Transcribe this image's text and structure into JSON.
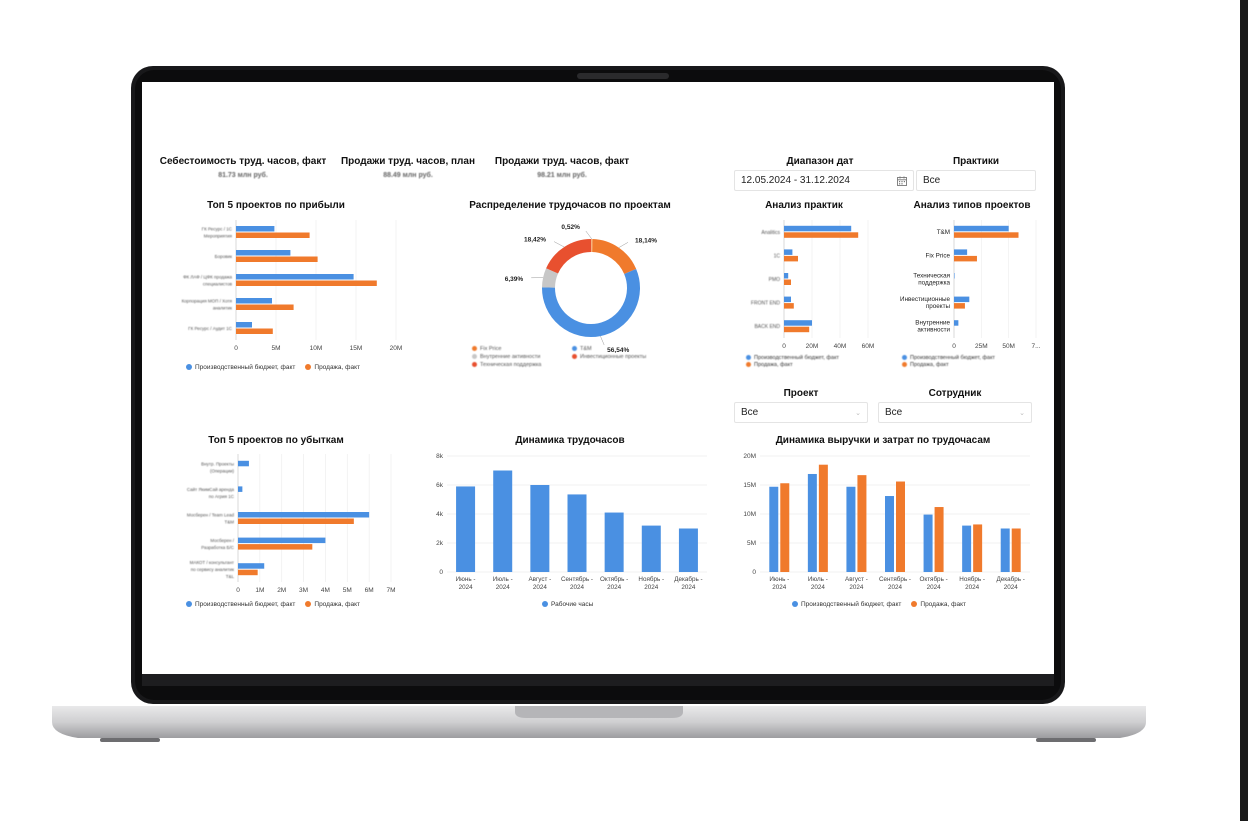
{
  "colors": {
    "blue": "#4A90E2",
    "orange": "#F07A2C",
    "red": "#E8502F",
    "gray": "#C7C7C7",
    "pale_orange": "#F6B37F"
  },
  "kpis": [
    {
      "title": "Себестоимость труд. часов, факт",
      "value": "81.73 млн руб."
    },
    {
      "title": "Продажи труд. часов, план",
      "value": "88.49 млн руб."
    },
    {
      "title": "Продажи труд. часов, факт",
      "value": "98.21 млн руб."
    }
  ],
  "filters": {
    "date_range": {
      "label": "Диапазон дат",
      "value": "12.05.2024 - 31.12.2024",
      "icon": "calendar-icon"
    },
    "practices": {
      "label": "Практики",
      "value": "Все"
    },
    "project": {
      "label": "Проект",
      "value": "Все"
    },
    "employee": {
      "label": "Сотрудник",
      "value": "Все"
    }
  },
  "legend": {
    "budget": "Производственный бюджет, факт",
    "sales": "Продажа, факт",
    "hours": "Рабочие часы"
  },
  "chart_data": [
    {
      "id": "top5_profit",
      "type": "bar",
      "orientation": "horizontal",
      "title": "Топ 5 проектов по прибыли",
      "categories": [
        "ГК Ресурс / 1С Мероприятия",
        "Боровик",
        "ФК ЛАФ / ЦФК продажа специалистов",
        "Корпорация МОП / Хотя аналитик",
        "ГК Ресурс / Аудит 1С"
      ],
      "series": [
        {
          "name": "Производственный бюджет, факт",
          "values": [
            4.8,
            6.8,
            14.7,
            4.5,
            2.0
          ]
        },
        {
          "name": "Продажа, факт",
          "values": [
            9.2,
            10.2,
            17.6,
            7.2,
            4.6
          ]
        }
      ],
      "xticks": [
        "0",
        "5M",
        "10M",
        "15M",
        "20M"
      ],
      "xlim": [
        0,
        20
      ]
    },
    {
      "id": "hours_distribution",
      "type": "pie",
      "title": "Распределение трудочасов по проектам",
      "labels": [
        "T&M",
        "Fix Price",
        "Техническая поддержка",
        "Внутренние активности",
        "Инвестиционные проекты"
      ],
      "values": [
        56.54,
        18.14,
        18.42,
        6.39,
        0.52
      ],
      "value_labels": [
        "56,54%",
        "18,14%",
        "18,42%",
        "6,39%",
        "0,52%"
      ]
    },
    {
      "id": "practice_analysis",
      "type": "bar",
      "orientation": "horizontal",
      "title": "Анализ практик",
      "categories": [
        "Analitics",
        "1С",
        "PMO",
        "FRONT END",
        "BACK END"
      ],
      "series": [
        {
          "name": "Производственный бюджет, факт",
          "values": [
            48,
            6,
            3,
            5,
            20
          ]
        },
        {
          "name": "Продажа, факт",
          "values": [
            53,
            10,
            5,
            7,
            18
          ]
        }
      ],
      "xticks": [
        "0",
        "20M",
        "40M",
        "60M"
      ],
      "xlim": [
        0,
        60
      ]
    },
    {
      "id": "project_type_analysis",
      "type": "bar",
      "orientation": "horizontal",
      "title": "Анализ типов проектов",
      "categories": [
        "T&M",
        "Fix Price",
        "Техническая поддержка",
        "Инвестиционные проекты",
        "Внутренние активности"
      ],
      "series": [
        {
          "name": "Производственный бюджет, факт",
          "values": [
            50,
            12,
            0.5,
            14,
            4
          ]
        },
        {
          "name": "Продажа, факт",
          "values": [
            59,
            21,
            0,
            10,
            0
          ]
        }
      ],
      "xticks": [
        "0",
        "25M",
        "50M",
        "7..."
      ],
      "xlim": [
        0,
        75
      ]
    },
    {
      "id": "top5_loss",
      "type": "bar",
      "orientation": "horizontal",
      "title": "Топ 5 проектов по убыткам",
      "categories": [
        "Внутр. Проекты (Операции)",
        "Сайт ЯкимСай аренда по Агрия 1С",
        "Мосберен / Team Lead T&M",
        "Мосберен / Разработка Б/С",
        "МАКОТ / консультант по сервису аналитик T&L"
      ],
      "series": [
        {
          "name": "Производственный бюджет, факт",
          "values": [
            0.5,
            0.2,
            6.0,
            4.0,
            1.2
          ]
        },
        {
          "name": "Продажа, факт",
          "values": [
            0,
            0,
            5.3,
            3.4,
            0.9
          ]
        }
      ],
      "xticks": [
        "0",
        "1M",
        "2M",
        "3M",
        "4M",
        "5M",
        "6M",
        "7M"
      ],
      "xlim": [
        0,
        7
      ]
    },
    {
      "id": "hours_dynamics",
      "type": "bar",
      "title": "Динамика трудочасов",
      "categories": [
        "Июнь - 2024",
        "Июль - 2024",
        "Август - 2024",
        "Сентябрь - 2024",
        "Октябрь - 2024",
        "Ноябрь - 2024",
        "Декабрь - 2024"
      ],
      "series": [
        {
          "name": "Рабочие часы",
          "values": [
            5900,
            7000,
            6000,
            5350,
            4100,
            3200,
            3000
          ]
        }
      ],
      "yticks": [
        "0",
        "2k",
        "4k",
        "6k",
        "8k"
      ],
      "ylim": [
        0,
        8000
      ]
    },
    {
      "id": "revenue_cost_dynamics",
      "type": "bar",
      "title": "Динамика выручки и затрат по трудочасам",
      "categories": [
        "Июнь - 2024",
        "Июль - 2024",
        "Август - 2024",
        "Сентябрь - 2024",
        "Октябрь - 2024",
        "Ноябрь - 2024",
        "Декабрь - 2024"
      ],
      "series": [
        {
          "name": "Производственный бюджет, факт",
          "values": [
            14.7,
            16.9,
            14.7,
            13.1,
            9.9,
            8.0,
            7.5
          ]
        },
        {
          "name": "Продажа, факт",
          "values": [
            15.3,
            18.5,
            16.7,
            15.6,
            11.2,
            8.2,
            7.5
          ]
        }
      ],
      "yticks": [
        "0",
        "5M",
        "10M",
        "15M",
        "20M"
      ],
      "ylim": [
        0,
        20
      ]
    }
  ]
}
